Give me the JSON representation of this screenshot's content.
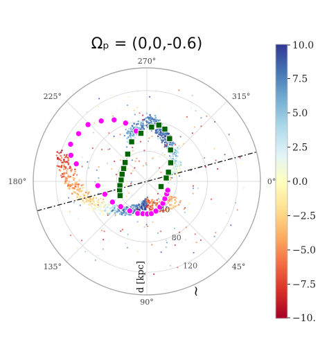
{
  "chart_data": {
    "type": "scatter",
    "projection": "polar",
    "title": "Ωₚ = (0,0,-0.6)",
    "radial_label": "d [kpc]",
    "angle_ticks": [
      "0°",
      "45°",
      "90°",
      "135°",
      "180°",
      "225°",
      "270°",
      "315°"
    ],
    "radial_ticks": [
      "40",
      "80",
      "120"
    ],
    "radial_max": 150,
    "grid": true,
    "colorbar": {
      "ticks": [
        "10.0",
        "7.5",
        "5.0",
        "2.5",
        "0.0",
        "−2.5",
        "−5.0",
        "−7.5",
        "−10."
      ],
      "min": -10,
      "max": 10,
      "colors": [
        "#a50026",
        "#d73027",
        "#f46d43",
        "#fdae61",
        "#fee090",
        "#ffffbf",
        "#e0f3f8",
        "#abd9e9",
        "#74add1",
        "#4575b4",
        "#313695"
      ]
    },
    "dashed_line": {
      "angle_deg": [
        195,
        15
      ],
      "style": "dash-dot",
      "color": "#111111"
    },
    "series": [
      {
        "marker": "circle",
        "color": "#ff00ff",
        "points": [
          {
            "d": 96,
            "theta": 194
          },
          {
            "d": 106,
            "theta": 199
          },
          {
            "d": 112,
            "theta": 206
          },
          {
            "d": 110,
            "theta": 215
          },
          {
            "d": 108,
            "theta": 224
          },
          {
            "d": 100,
            "theta": 233
          },
          {
            "d": 92,
            "theta": 242
          },
          {
            "d": 82,
            "theta": 250
          },
          {
            "d": 68,
            "theta": 258
          },
          {
            "d": 65,
            "theta": 175
          },
          {
            "d": 58,
            "theta": 163
          },
          {
            "d": 53,
            "theta": 149
          },
          {
            "d": 48,
            "theta": 136
          },
          {
            "d": 45,
            "theta": 120
          },
          {
            "d": 44,
            "theta": 106
          },
          {
            "d": 43,
            "theta": 97
          },
          {
            "d": 43,
            "theta": 89
          },
          {
            "d": 43,
            "theta": 82
          },
          {
            "d": 41,
            "theta": 73
          },
          {
            "d": 38,
            "theta": 63
          },
          {
            "d": 36,
            "theta": 54
          },
          {
            "d": 33,
            "theta": 44
          },
          {
            "d": 31,
            "theta": 32
          },
          {
            "d": 30,
            "theta": 23
          }
        ]
      },
      {
        "marker": "square",
        "color": "#006400",
        "points": [
          {
            "d": 20,
            "theta": 20
          },
          {
            "d": 26,
            "theta": 350
          },
          {
            "d": 31,
            "theta": 337
          },
          {
            "d": 40,
            "theta": 322
          },
          {
            "d": 52,
            "theta": 307
          },
          {
            "d": 64,
            "theta": 298
          },
          {
            "d": 73,
            "theta": 289
          },
          {
            "d": 76,
            "theta": 282
          },
          {
            "d": 72,
            "theta": 275
          },
          {
            "d": 64,
            "theta": 263
          },
          {
            "d": 56,
            "theta": 249
          },
          {
            "d": 44,
            "theta": 235
          },
          {
            "d": 38,
            "theta": 221
          },
          {
            "d": 35,
            "theta": 209
          },
          {
            "d": 34,
            "theta": 196
          },
          {
            "d": 34,
            "theta": 183
          },
          {
            "d": 36,
            "theta": 171
          },
          {
            "d": 38,
            "theta": 161
          },
          {
            "d": 40,
            "theta": 152
          }
        ]
      }
    ]
  }
}
